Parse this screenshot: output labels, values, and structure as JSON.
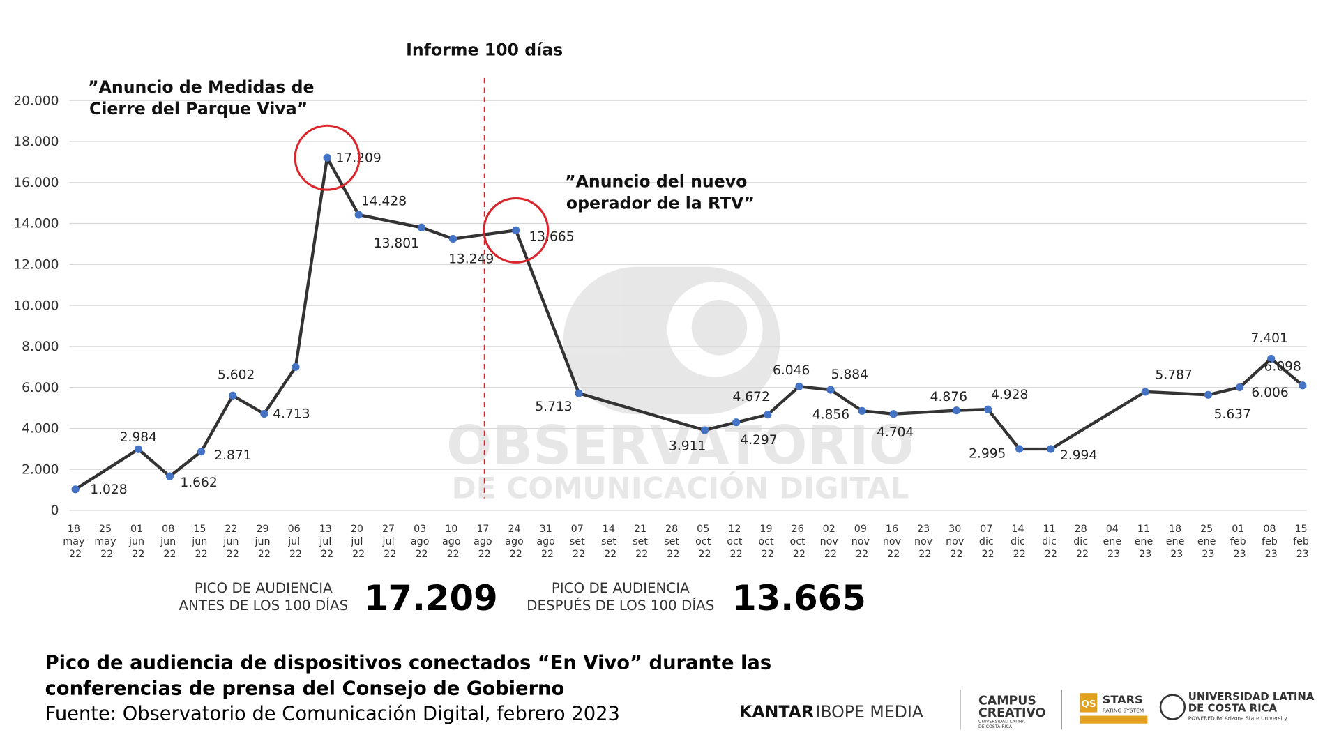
{
  "chart_data": {
    "type": "line",
    "annotation_top": "Informe 100 días",
    "annotation_left": [
      "”Anuncio de Medidas de",
      "Cierre del Parque Viva”"
    ],
    "annotation_right": [
      "”Anuncio del nuevo",
      "operador de la RTV”"
    ],
    "categories": [
      "18 may 22",
      "25 may 22",
      "01 jun 22",
      "08 jun 22",
      "15 jun 22",
      "22 jun 22",
      "29 jun 22",
      "06 jul 22",
      "13 jul 22",
      "20 jul 22",
      "27 jul 22",
      "03 ago 22",
      "10 ago 22",
      "17 ago 22",
      "24 ago 22",
      "31 ago 22",
      "07 set 22",
      "14 set 22",
      "21 set 22",
      "28 set 22",
      "05 oct 22",
      "12 oct 22",
      "19 oct 22",
      "26 oct 22",
      "02 nov 22",
      "09 nov 22",
      "16 nov 22",
      "23 nov 22",
      "30 nov 22",
      "07 dic 22",
      "14 dic 22",
      "11 dic 22",
      "28 dic 22",
      "04 ene 23",
      "11 ene 23",
      "18 ene 23",
      "25 ene 23",
      "01 feb 23",
      "08 feb 23",
      "15 feb 23"
    ],
    "series": [
      {
        "line_color": "#333333",
        "color": "#4472c4",
        "x": [
          "18 may 22",
          "01 jun 22",
          "08 jun 22",
          "15 jun 22",
          "22 jun 22",
          "29 jun 22",
          "06 jul 22",
          "13 jul 22",
          "20 jul 22",
          "03 ago 22",
          "10 ago 22",
          "24 ago 22",
          "07 set 22",
          "05 oct 22",
          "12 oct 22",
          "19 oct 22",
          "26 oct 22",
          "02 nov 22",
          "09 nov 22",
          "16 nov 22",
          "30 nov 22",
          "07 dic 22",
          "14 dic 22",
          "11 dic 22",
          "11 ene 23",
          "25 ene 23",
          "01 feb 23",
          "08 feb 23",
          "15 feb 23"
        ],
        "values": [
          1028,
          2984,
          1662,
          2871,
          5602,
          4713,
          7000,
          17209,
          14428,
          13801,
          13249,
          13665,
          5713,
          3911,
          4297,
          4672,
          6046,
          5884,
          4856,
          4704,
          4876,
          4928,
          2995,
          2994,
          5787,
          5637,
          6006,
          7401,
          6098
        ],
        "value_labels": [
          "1.028",
          "2.984",
          "1.662",
          "2.871",
          "5.602",
          "4.713",
          null,
          "17.209",
          "14.428",
          "13.801",
          "13.249",
          "13.665",
          "5.713",
          "3.911",
          "4.297",
          "4.672",
          "6.046",
          "5.884",
          "4.856",
          "4.704",
          "4.876",
          "4.928",
          "2.995",
          "2.994",
          "5.787",
          "5.637",
          "6.006",
          "7.401",
          "6.098"
        ]
      }
    ],
    "highlight": [
      "13 jul 22",
      "24 ago 22"
    ],
    "highlight_color": "#d9262c",
    "divider": "17 ago 22",
    "ylim": [
      0,
      20000
    ],
    "yticks": [
      0,
      {
        "value": 2000,
        "label": "2.000"
      },
      {
        "value": 4000,
        "label": "4.000"
      },
      {
        "value": 6000,
        "label": "6.000"
      },
      {
        "value": 8000,
        "label": "8.000"
      },
      {
        "value": 10000,
        "label": "10.000"
      },
      {
        "value": 12000,
        "label": "12.000"
      },
      {
        "value": 14000,
        "label": "14.000"
      },
      {
        "value": 16000,
        "label": "16.000"
      },
      {
        "value": 18000,
        "label": "18.000"
      },
      {
        "value": 20000,
        "label": "20.000"
      }
    ],
    "grid": true
  },
  "summary": [
    {
      "label": [
        "PICO DE AUDIENCIA",
        "ANTES DE LOS 100 DÍAS"
      ],
      "value": "17.209"
    },
    {
      "label": [
        "PICO DE AUDIENCIA",
        "DESPUÉS DE LOS 100 DÍAS"
      ],
      "value": "13.665"
    }
  ],
  "watermark": [
    "OBSERVATORIO",
    "DE COMUNICACIÓN DIGITAL"
  ],
  "footer": {
    "title": [
      "Pico de audiencia de dispositivos conectados “En Vivo” durante las",
      "conferencias de prensa del Consejo de Gobierno"
    ],
    "source": "Fuente: Observatorio de Comunicación Digital, febrero 2023"
  },
  "logos": {
    "kantar": [
      "KANTAR",
      "IBOPE MEDIA"
    ],
    "campus": [
      "CAMPUS",
      "CREATIVO",
      "UNIVERSIDAD LATINA",
      "DE COSTA RICA"
    ],
    "stars": [
      "QS",
      "STARS",
      "RATING SYSTEM"
    ],
    "ulatina": [
      "UNIVERSIDAD LATINA",
      "DE COSTA RICA",
      "POWERED BY Arizona State University"
    ]
  }
}
